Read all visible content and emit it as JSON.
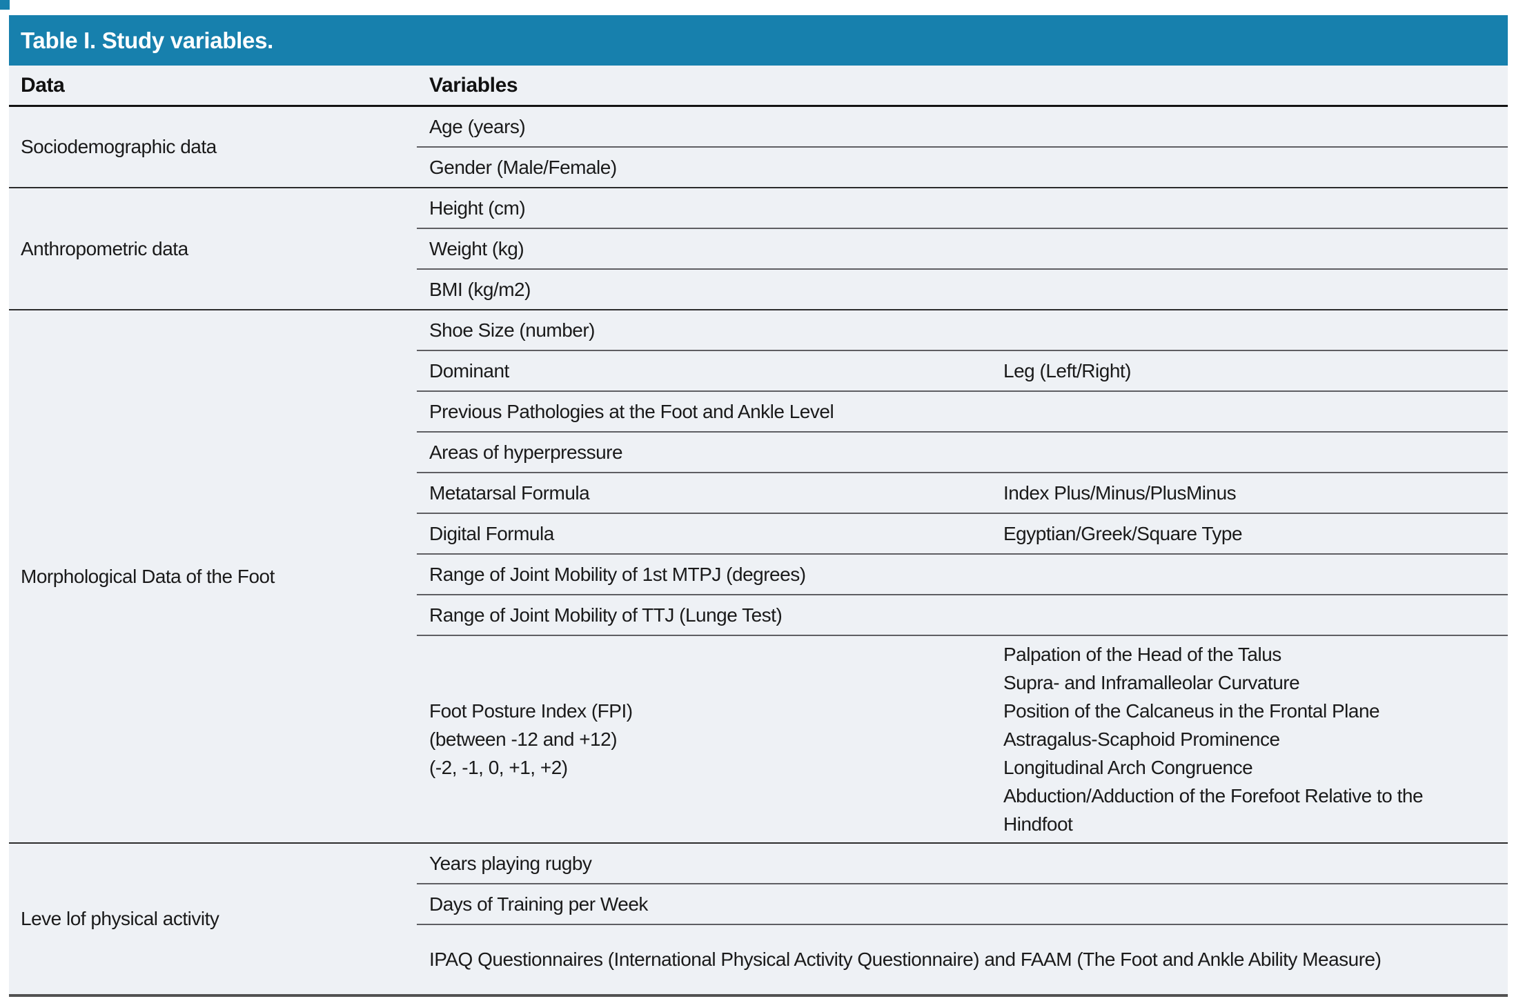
{
  "title": "Table I. Study variables.",
  "columns": {
    "data": "Data",
    "variables": "Variables"
  },
  "colors": {
    "title_bar_bg": "#1780ad",
    "row_bg": "#eef1f5",
    "text": "#1a1a1a",
    "group_divider": "#2b2b2b",
    "sub_divider": "#5e5e62"
  },
  "groups": [
    {
      "label": "Sociodemographic data",
      "rows": [
        {
          "main": "Age (years)"
        },
        {
          "main": "Gender (Male/Female)"
        }
      ]
    },
    {
      "label": "Anthropometric data",
      "rows": [
        {
          "main": "Height (cm)"
        },
        {
          "main": "Weight (kg)"
        },
        {
          "main": "BMI (kg/m2)"
        }
      ]
    },
    {
      "label": "Morphological Data of the Foot",
      "rows": [
        {
          "main": "Shoe Size (number)"
        },
        {
          "main": "Dominant",
          "sub": "Leg (Left/Right)"
        },
        {
          "main": "Previous Pathologies at the Foot and Ankle Level"
        },
        {
          "main": "Areas of hyperpressure"
        },
        {
          "main": "Metatarsal Formula",
          "sub": "Index Plus/Minus/PlusMinus"
        },
        {
          "main": "Digital Formula",
          "sub": "Egyptian/Greek/Square Type"
        },
        {
          "main": "Range of Joint Mobility of 1st MTPJ (degrees)"
        },
        {
          "main": "Range of Joint Mobility of TTJ (Lunge Test)"
        },
        {
          "main_lines": [
            "Foot Posture Index (FPI)",
            "(between -12 and +12)",
            "(-2, -1, 0, +1, +2)"
          ],
          "sub_lines": [
            "Palpation of the Head of the Talus",
            "Supra- and Inframalleolar Curvature",
            "Position of the Calcaneus in the Frontal Plane",
            "Astragalus-Scaphoid Prominence",
            "Longitudinal Arch Congruence",
            "Abduction/Adduction of the Forefoot Relative to the Hindfoot"
          ]
        }
      ]
    },
    {
      "label": "Leve lof physical activity",
      "rows": [
        {
          "main": "Years playing rugby"
        },
        {
          "main": "Days of Training per Week"
        },
        {
          "main": "IPAQ Questionnaires (International Physical Activity Questionnaire) and FAAM (The Foot and Ankle Ability Measure)"
        }
      ]
    }
  ]
}
